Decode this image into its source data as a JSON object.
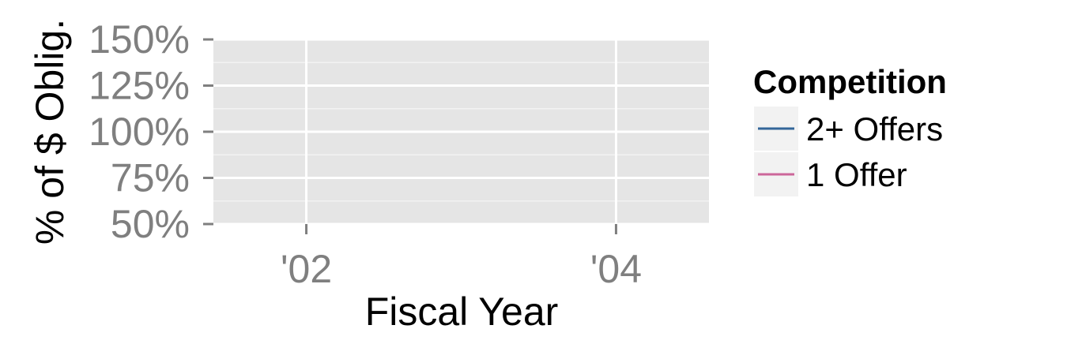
{
  "chart_data": {
    "type": "line",
    "title": "",
    "xlabel": "Fiscal Year",
    "ylabel": "% of $ Oblig.",
    "x_ticks": [
      {
        "value": 2002,
        "label": "'02"
      },
      {
        "value": 2004,
        "label": "'04"
      }
    ],
    "y_ticks": [
      {
        "value": 0.5,
        "label": "50%"
      },
      {
        "value": 0.75,
        "label": "75%"
      },
      {
        "value": 1.0,
        "label": "100%"
      },
      {
        "value": 1.25,
        "label": "125%"
      },
      {
        "value": 1.5,
        "label": "150%"
      }
    ],
    "xlim": [
      2001.4,
      2004.6
    ],
    "ylim": [
      0.5,
      1.5
    ],
    "grid": true,
    "legend": {
      "title": "Competition",
      "placement": "right"
    },
    "series": [
      {
        "name": "2+ Offers",
        "color": "#336699",
        "x": [],
        "values": []
      },
      {
        "name": "1 Offer",
        "color": "#CC6699",
        "x": [],
        "values": []
      }
    ]
  }
}
